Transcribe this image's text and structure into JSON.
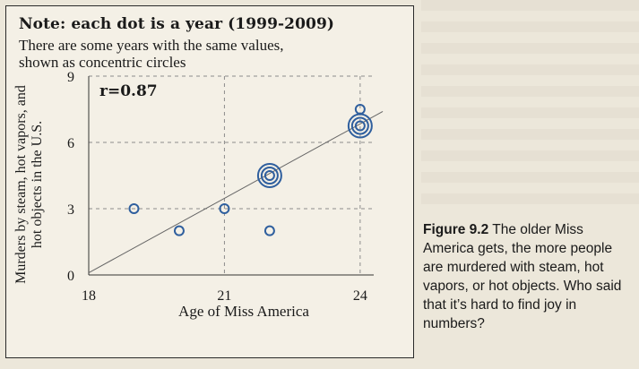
{
  "note": {
    "title": "Note: each dot is a year (1999-2009)",
    "subtitle": "There are some years with the same values, shown as concentric circles"
  },
  "caption": {
    "label": "Figure 9.2",
    "text": "The older Miss America gets, the more people are murdered with steam, hot vapors, or hot objects. Who said that it’s hard to find joy in numbers?"
  },
  "chart_data": {
    "type": "scatter",
    "xlabel": "Age of Miss America",
    "ylabel": "Murders by steam, hot vapors, and hot objects in the U.S.",
    "xlim": [
      18,
      24.3
    ],
    "ylim": [
      0,
      9
    ],
    "xticks": [
      18,
      21,
      24
    ],
    "yticks": [
      0,
      3,
      6,
      9
    ],
    "grid": true,
    "grid_style": "dashed",
    "annotation": "r=0.87",
    "points": [
      {
        "x": 19.0,
        "y": 3.0,
        "count": 1
      },
      {
        "x": 20.0,
        "y": 2.0,
        "count": 1
      },
      {
        "x": 21.0,
        "y": 3.0,
        "count": 1
      },
      {
        "x": 22.0,
        "y": 2.0,
        "count": 1
      },
      {
        "x": 22.0,
        "y": 4.5,
        "count": 3
      },
      {
        "x": 24.0,
        "y": 7.5,
        "count": 1
      },
      {
        "x": 24.0,
        "y": 6.75,
        "count": 3
      }
    ],
    "trendline": {
      "x": [
        18,
        24.5
      ],
      "y": [
        0.1,
        7.4
      ]
    },
    "colors": {
      "point": "#2f5f9e",
      "axis": "#333333",
      "grid": "#8c8c8c"
    }
  }
}
